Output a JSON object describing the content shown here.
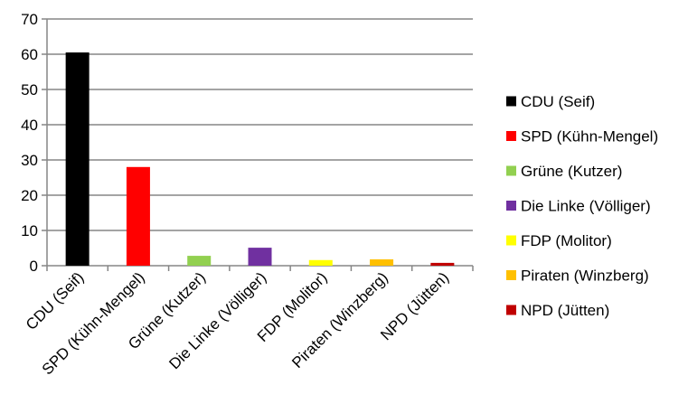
{
  "chart_data": {
    "type": "bar",
    "categories": [
      "CDU (Seif)",
      "SPD (Kühn-Mengel)",
      "Grüne (Kutzer)",
      "Die Linke (Völliger)",
      "FDP (Molitor)",
      "Piraten (Winzberg)",
      "NPD (Jütten)"
    ],
    "values": [
      60.5,
      28.0,
      2.8,
      5.1,
      1.6,
      1.8,
      0.8
    ],
    "colors": [
      "#000000",
      "#ff0000",
      "#92d050",
      "#7030a0",
      "#ffff00",
      "#ffc000",
      "#c00000"
    ],
    "ylim": [
      0,
      70
    ],
    "yticks": [
      0,
      10,
      20,
      30,
      40,
      50,
      60,
      70
    ],
    "grid": true,
    "legend": {
      "position": "right",
      "entries": [
        "CDU (Seif)",
        "SPD (Kühn-Mengel)",
        "Grüne (Kutzer)",
        "Die Linke (Völliger)",
        "FDP (Molitor)",
        "Piraten (Winzberg)",
        "NPD (Jütten)"
      ]
    }
  }
}
